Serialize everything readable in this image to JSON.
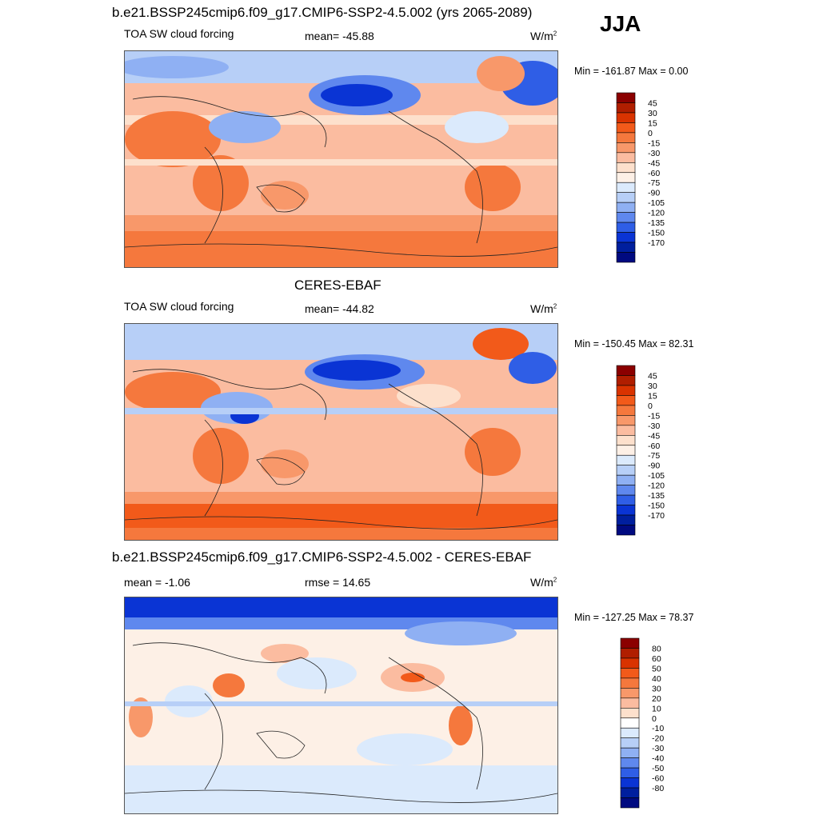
{
  "season": "JJA",
  "panels": [
    {
      "title": "b.e21.BSSP245cmip6.f09_g17.CMIP6-SSP2-4.5.002 (yrs 2065-2089)",
      "left_label": "TOA SW cloud forcing",
      "center_label": "mean= -45.88",
      "units": "W/m",
      "units_sup": "2",
      "minmax": "Min = -161.87 Max =   0.00",
      "colorbar": {
        "labels": [
          "45",
          "30",
          "15",
          "0",
          "-15",
          "-30",
          "-45",
          "-60",
          "-75",
          "-90",
          "-105",
          "-120",
          "-135",
          "-150",
          "-170"
        ],
        "colors": [
          "#8b0000",
          "#b01e00",
          "#d93300",
          "#f25a1a",
          "#f5783d",
          "#f8986a",
          "#fbbca0",
          "#fde0cc",
          "#fdf0e6",
          "#dbeafc",
          "#b7cff7",
          "#8fb0f3",
          "#5f88ee",
          "#2f5ee6",
          "#0a34d4",
          "#001f9e",
          "#000a80"
        ]
      }
    },
    {
      "title": "CERES-EBAF",
      "left_label": "TOA SW cloud forcing",
      "center_label": "mean= -44.82",
      "units": "W/m",
      "units_sup": "2",
      "minmax": "Min = -150.45 Max =  82.31",
      "colorbar": {
        "labels": [
          "45",
          "30",
          "15",
          "0",
          "-15",
          "-30",
          "-45",
          "-60",
          "-75",
          "-90",
          "-105",
          "-120",
          "-135",
          "-150",
          "-170"
        ],
        "colors": [
          "#8b0000",
          "#b01e00",
          "#d93300",
          "#f25a1a",
          "#f5783d",
          "#f8986a",
          "#fbbca0",
          "#fde0cc",
          "#fdf0e6",
          "#dbeafc",
          "#b7cff7",
          "#8fb0f3",
          "#5f88ee",
          "#2f5ee6",
          "#0a34d4",
          "#001f9e",
          "#000a80"
        ]
      }
    },
    {
      "title": "b.e21.BSSP245cmip6.f09_g17.CMIP6-SSP2-4.5.002 - CERES-EBAF",
      "left_label": "mean =  -1.06",
      "center_label": "rmse =  14.65",
      "units": "W/m",
      "units_sup": "2",
      "minmax": "Min = -127.25 Max =  78.37",
      "colorbar": {
        "labels": [
          "80",
          "60",
          "50",
          "40",
          "30",
          "20",
          "10",
          "0",
          "-10",
          "-20",
          "-30",
          "-40",
          "-50",
          "-60",
          "-80"
        ],
        "colors": [
          "#8b0000",
          "#b01e00",
          "#d93300",
          "#f25a1a",
          "#f5783d",
          "#f8986a",
          "#fbbca0",
          "#fde0cc",
          "#ffffff",
          "#dbeafc",
          "#b7cff7",
          "#8fb0f3",
          "#5f88ee",
          "#2f5ee6",
          "#0a34d4",
          "#001f9e",
          "#000a80"
        ]
      }
    }
  ]
}
